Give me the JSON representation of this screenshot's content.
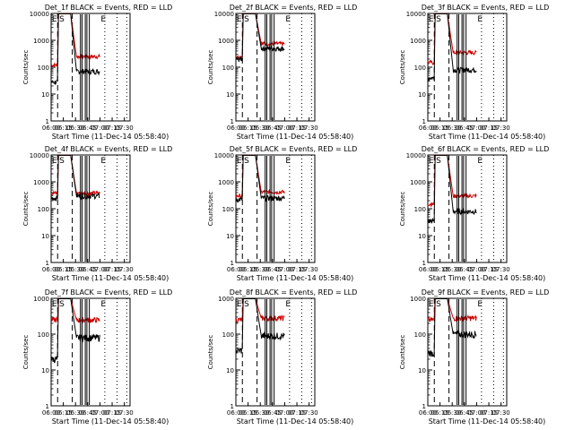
{
  "figure": {
    "colors": {
      "events": "#000000",
      "lld": "#cc0000",
      "axes": "#000000",
      "background": "#ffffff"
    },
    "shared": {
      "xlabel": "Start Time (11-Dec-14 05:58:40)",
      "ylabel": "Counts/sec",
      "xticks": [
        "06:00",
        "06:15",
        "06:30",
        "06:45",
        "07:00",
        "07:15",
        "07:30"
      ],
      "yticks": [
        "1",
        "10",
        "100",
        "1000",
        "10000"
      ],
      "x_range_minutes_after_0600": [
        0,
        97
      ],
      "y_range": [
        1,
        10000
      ],
      "y_scale": "log",
      "dashed_marker_minutes": [
        8,
        26
      ],
      "dotted_marker_minutes": [
        66,
        81,
        93
      ],
      "corner_marks": [
        "E",
        "S",
        "E"
      ]
    }
  },
  "chart_data": [
    {
      "type": "line",
      "title": "Det_1f BLACK = Events, RED = LLD",
      "ylabel": "Counts/sec",
      "xlabel": "Start Time (11-Dec-14 05:58:40)",
      "ylim": [
        1,
        10000
      ],
      "y_scale": "log",
      "segments": [
        {
          "x_start": 0,
          "x_end": 8,
          "events": 28,
          "lld": 120
        },
        {
          "x_start": 26,
          "x_end": 60,
          "events": 70,
          "lld": 250
        }
      ],
      "spike_minutes": [
        36,
        38,
        42,
        44,
        47
      ]
    },
    {
      "type": "line",
      "title": "Det_2f BLACK = Events, RED = LLD",
      "ylabel": "Counts/sec",
      "xlabel": "Start Time (11-Dec-14 05:58:40)",
      "ylim": [
        1,
        10000
      ],
      "y_scale": "log",
      "segments": [
        {
          "x_start": 0,
          "x_end": 8,
          "events": 200,
          "lld": 250
        },
        {
          "x_start": 26,
          "x_end": 60,
          "events": 500,
          "lld": 750
        }
      ],
      "spike_minutes": [
        36,
        38,
        42,
        44,
        47
      ]
    },
    {
      "type": "line",
      "title": "Det_3f BLACK = Events, RED = LLD",
      "ylabel": "Counts/sec",
      "xlabel": "Start Time (11-Dec-14 05:58:40)",
      "ylim": [
        1,
        10000
      ],
      "y_scale": "log",
      "segments": [
        {
          "x_start": 0,
          "x_end": 8,
          "events": 40,
          "lld": 150
        },
        {
          "x_start": 26,
          "x_end": 60,
          "events": 80,
          "lld": 350
        }
      ],
      "spike_minutes": [
        36,
        38,
        42,
        44,
        47
      ]
    },
    {
      "type": "line",
      "title": "Det_4f BLACK = Events, RED = LLD",
      "ylabel": "Counts/sec",
      "xlabel": "Start Time (11-Dec-14 05:58:40)",
      "ylim": [
        1,
        10000
      ],
      "y_scale": "log",
      "segments": [
        {
          "x_start": 0,
          "x_end": 8,
          "events": 250,
          "lld": 380
        },
        {
          "x_start": 26,
          "x_end": 60,
          "events": 300,
          "lld": 380
        }
      ],
      "spike_minutes": [
        36,
        38,
        42,
        44,
        47
      ]
    },
    {
      "type": "line",
      "title": "Det_5f BLACK = Events, RED = LLD",
      "ylabel": "Counts/sec",
      "xlabel": "Start Time (11-Dec-14 05:58:40)",
      "ylim": [
        1,
        10000
      ],
      "y_scale": "log",
      "segments": [
        {
          "x_start": 0,
          "x_end": 8,
          "events": 220,
          "lld": 300
        },
        {
          "x_start": 26,
          "x_end": 60,
          "events": 250,
          "lld": 420
        }
      ],
      "spike_minutes": [
        36,
        38,
        42,
        44,
        47
      ]
    },
    {
      "type": "line",
      "title": "Det_6f BLACK = Events, RED = LLD",
      "ylabel": "Counts/sec",
      "xlabel": "Start Time (11-Dec-14 05:58:40)",
      "ylim": [
        1,
        10000
      ],
      "y_scale": "log",
      "segments": [
        {
          "x_start": 0,
          "x_end": 8,
          "events": 35,
          "lld": 150
        },
        {
          "x_start": 26,
          "x_end": 60,
          "events": 80,
          "lld": 300
        }
      ],
      "spike_minutes": [
        36,
        38,
        42,
        44,
        47
      ]
    },
    {
      "type": "line",
      "title": "Det_7f BLACK = Events, RED = LLD",
      "ylabel": "Counts/sec",
      "xlabel": "Start Time (11-Dec-14 05:58:40)",
      "ylim": [
        1,
        1000
      ],
      "y_scale": "log",
      "segments": [
        {
          "x_start": 0,
          "x_end": 8,
          "events": 20,
          "lld": 250
        },
        {
          "x_start": 26,
          "x_end": 60,
          "events": 80,
          "lld": 250
        }
      ],
      "spike_minutes": [
        36,
        38,
        42,
        44,
        47
      ]
    },
    {
      "type": "line",
      "title": "Det_8f BLACK = Events, RED = LLD",
      "ylabel": "Counts/sec",
      "xlabel": "Start Time (11-Dec-14 05:58:40)",
      "ylim": [
        1,
        1000
      ],
      "y_scale": "log",
      "segments": [
        {
          "x_start": 0,
          "x_end": 8,
          "events": 35,
          "lld": 250
        },
        {
          "x_start": 26,
          "x_end": 60,
          "events": 90,
          "lld": 280
        }
      ],
      "spike_minutes": [
        36,
        38,
        42,
        44,
        47
      ]
    },
    {
      "type": "line",
      "title": "Det_9f BLACK = Events, RED = LLD",
      "ylabel": "Counts/sec",
      "xlabel": "Start Time (11-Dec-14 05:58:40)",
      "ylim": [
        1,
        1000
      ],
      "y_scale": "log",
      "segments": [
        {
          "x_start": 0,
          "x_end": 8,
          "events": 30,
          "lld": 250
        },
        {
          "x_start": 26,
          "x_end": 60,
          "events": 100,
          "lld": 280
        }
      ],
      "spike_minutes": [
        36,
        38,
        42,
        44,
        47
      ]
    }
  ]
}
